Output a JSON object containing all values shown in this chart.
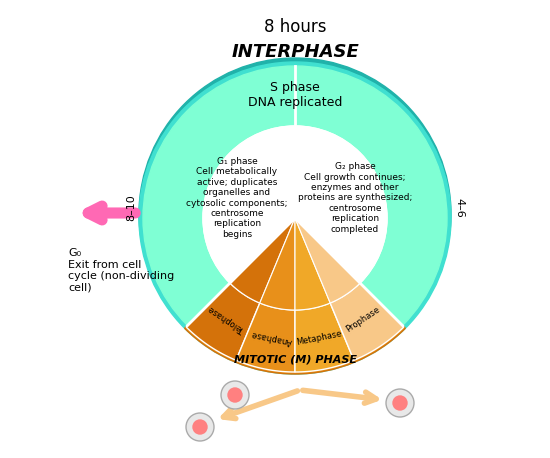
{
  "title": "8 hours",
  "interphase_label": "INTERPHASE",
  "s_phase_label": "S phase\nDNA replicated",
  "g1_label": "G₁ phase\nCell metabolically\nactive; duplicates\norganelles and\ncytosolic components;\ncentrosome\nreplication\nbegins",
  "g2_label": "G₂ phase\nCell growth continues;\nenzymes and other\nproteins are synthesized;\ncentrosome\nreplication\ncompleted",
  "mitotic_label": "MITOTIC (M) PHASE",
  "g0_label": "G₀\nExit from cell\ncycle (non-dividing\ncell)",
  "hours_left": "8–10",
  "hours_right": "4–6",
  "phases": [
    "Telophase",
    "Anaphase",
    "Metaphase",
    "Prophase"
  ],
  "bg_color": "#ffffff",
  "interphase_color": "#7fffd4",
  "interphase_outer_color": "#40e0d0",
  "mitotic_color": "#f4a030",
  "mitotic_dark": "#e8891a",
  "arrow_pink": "#ff69b4",
  "arrow_division": "#f5c8a8",
  "cell_pink": "#ff8080",
  "cone_colors": [
    "#e8941a",
    "#f0a030",
    "#f5b050",
    "#f8c070"
  ]
}
